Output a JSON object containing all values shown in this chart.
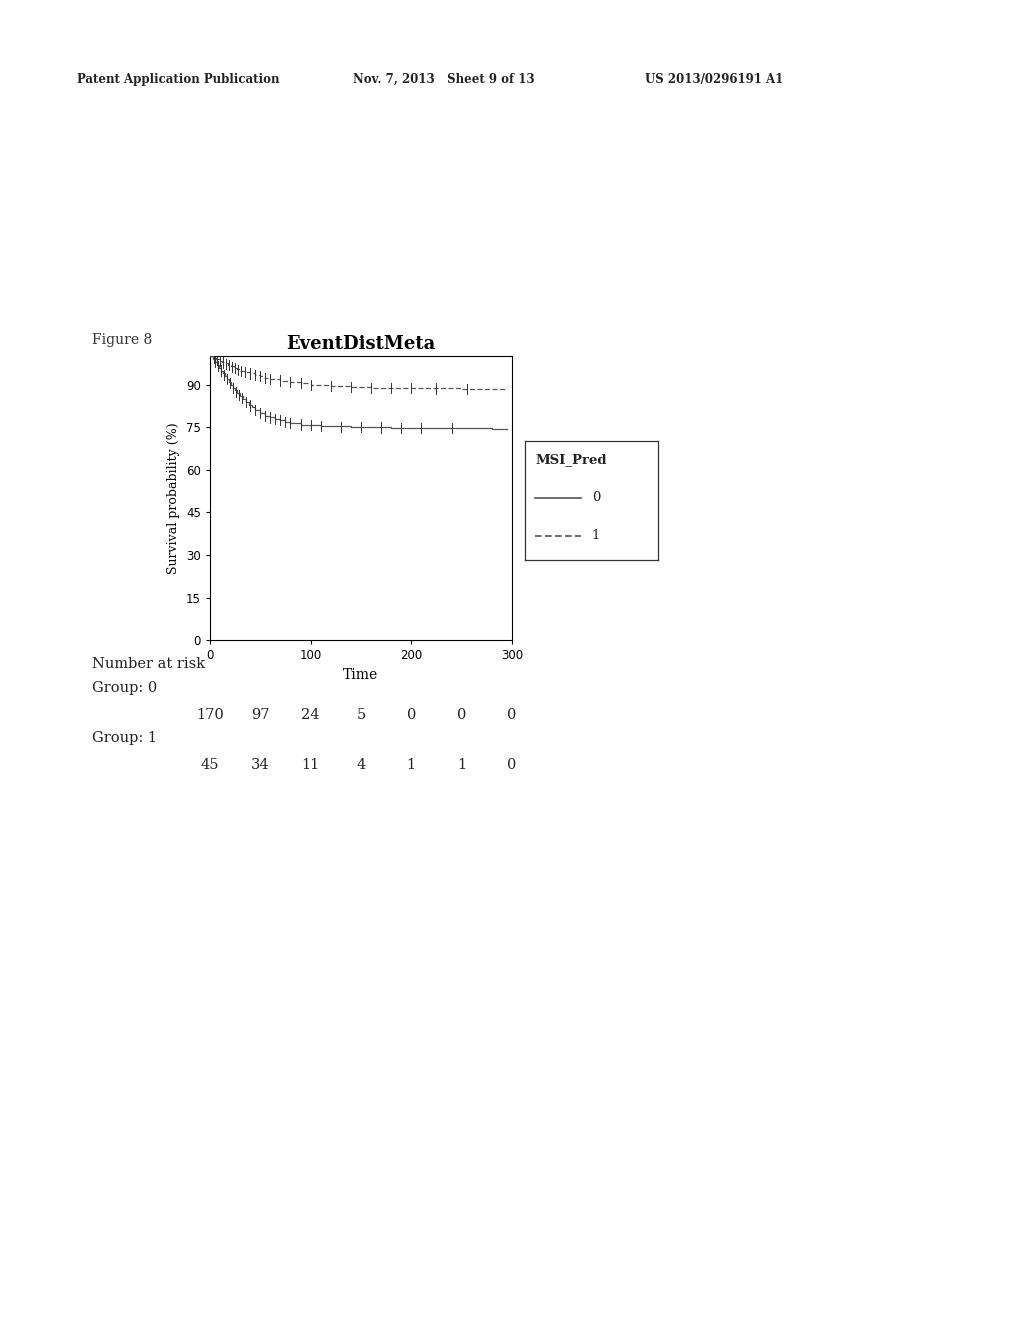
{
  "title": "EventDistMeta",
  "xlabel": "Time",
  "ylabel": "Survival probability (%)",
  "figure_caption": "Figure 8",
  "header_left": "Patent Application Publication",
  "header_center": "Nov. 7, 2013   Sheet 9 of 13",
  "header_right": "US 2013/0296191 A1",
  "xlim": [
    0,
    300
  ],
  "ylim": [
    0,
    100
  ],
  "yticks": [
    0,
    15,
    30,
    45,
    60,
    75,
    90
  ],
  "xticks": [
    0,
    100,
    200,
    300
  ],
  "legend_title": "MSI_Pred",
  "legend_entries": [
    "0",
    "1"
  ],
  "line_color": "#555555",
  "risk_table_title": "Number at risk",
  "group0_label": "Group: 0",
  "group1_label": "Group: 1",
  "group0_risk": [
    "170",
    "97",
    "24",
    "5",
    "0",
    "0",
    "0"
  ],
  "group1_risk": [
    "45",
    "34",
    "11",
    "4",
    "1",
    "1",
    "0"
  ],
  "group0_x": [
    0,
    3,
    5,
    7,
    9,
    11,
    13,
    15,
    17,
    19,
    21,
    23,
    25,
    27,
    30,
    33,
    36,
    39,
    42,
    45,
    50,
    55,
    60,
    65,
    70,
    75,
    80,
    90,
    100,
    110,
    120,
    140,
    160,
    180,
    200,
    220,
    250,
    280,
    295
  ],
  "group0_y": [
    100,
    99,
    98,
    97,
    96,
    95,
    94,
    93,
    92,
    91,
    90,
    89,
    88,
    87,
    86,
    85,
    84,
    83,
    82,
    81,
    80,
    79,
    78.5,
    78,
    77.5,
    77,
    76.5,
    76,
    75.8,
    75.5,
    75.3,
    75.1,
    75.0,
    74.9,
    74.8,
    74.7,
    74.6,
    74.5,
    74.5
  ],
  "group1_x": [
    0,
    3,
    6,
    9,
    12,
    15,
    18,
    21,
    24,
    27,
    30,
    35,
    40,
    45,
    50,
    55,
    60,
    70,
    80,
    90,
    100,
    120,
    140,
    160,
    180,
    200,
    220,
    250,
    280,
    295
  ],
  "group1_y": [
    100,
    99.5,
    99,
    98.5,
    98,
    97.5,
    97,
    96.5,
    96,
    95.5,
    95,
    94.5,
    94,
    93.5,
    93,
    92.5,
    92,
    91.5,
    91,
    90.5,
    90,
    89.5,
    89.2,
    89,
    88.9,
    88.8,
    88.7,
    88.6,
    88.5,
    88.5
  ],
  "censor0_x": [
    5,
    8,
    11,
    14,
    17,
    20,
    23,
    26,
    29,
    32,
    36,
    40,
    45,
    50,
    55,
    60,
    65,
    70,
    75,
    80,
    90,
    100,
    110,
    130,
    150,
    170,
    190,
    210,
    240
  ],
  "censor1_x": [
    4,
    7,
    10,
    13,
    16,
    19,
    22,
    25,
    28,
    31,
    35,
    40,
    45,
    50,
    55,
    60,
    70,
    80,
    90,
    100,
    120,
    140,
    160,
    180,
    200,
    225,
    255
  ],
  "background_color": "#ffffff"
}
